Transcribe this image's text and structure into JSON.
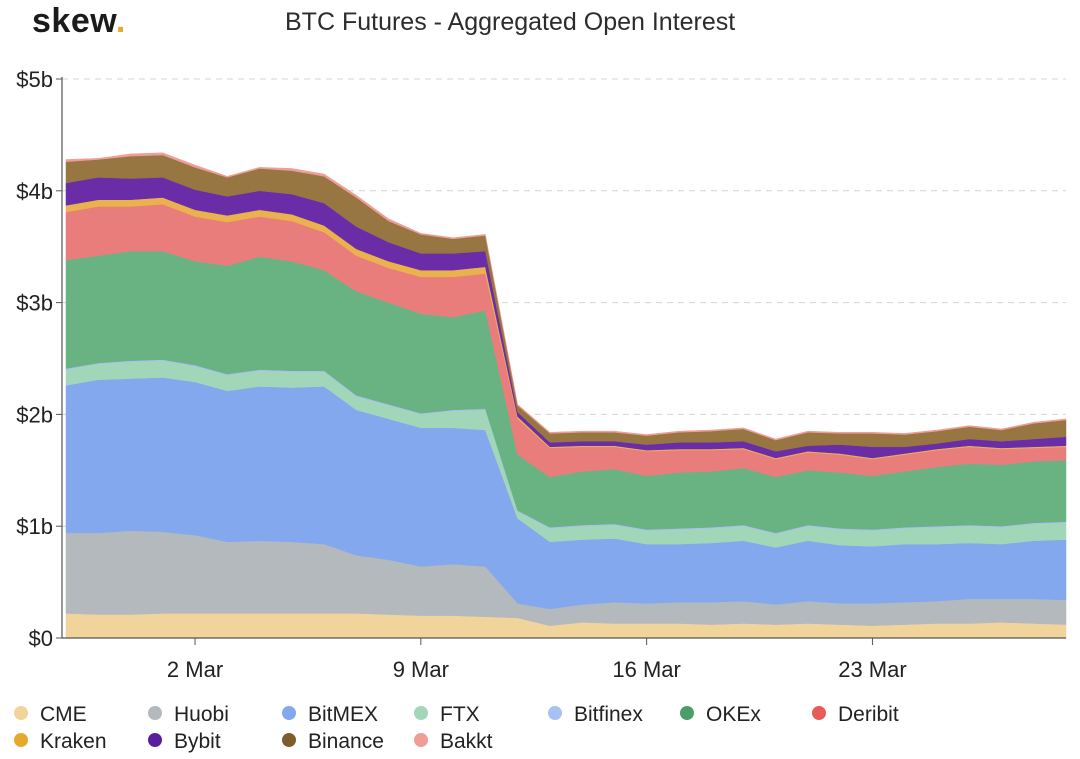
{
  "header": {
    "logo_text": "skew",
    "logo_dot": ".",
    "logo_dot_color": "#e7a92d"
  },
  "chart_data": {
    "type": "area",
    "stacked": true,
    "title": "BTC Futures - Aggregated Open Interest",
    "xlabel": "",
    "ylabel": "",
    "x_ticks": [
      "2 Mar",
      "9 Mar",
      "16 Mar",
      "23 Mar"
    ],
    "y_ticks": [
      "$0",
      "$1b",
      "$2b",
      "$3b",
      "$4b",
      "$5b"
    ],
    "ylim": [
      0,
      5
    ],
    "y_unit": "billion USD",
    "grid": "horizontal dashed",
    "legend_position": "bottom",
    "x": [
      "27 Feb",
      "28 Feb",
      "29 Feb",
      "1 Mar",
      "2 Mar",
      "3 Mar",
      "4 Mar",
      "5 Mar",
      "6 Mar",
      "7 Mar",
      "8 Mar",
      "9 Mar",
      "10 Mar",
      "11 Mar",
      "12 Mar",
      "13 Mar",
      "14 Mar",
      "15 Mar",
      "16 Mar",
      "17 Mar",
      "18 Mar",
      "19 Mar",
      "20 Mar",
      "21 Mar",
      "22 Mar",
      "23 Mar",
      "24 Mar",
      "25 Mar",
      "26 Mar",
      "27 Mar",
      "28 Mar",
      "29 Mar"
    ],
    "series": [
      {
        "name": "CME",
        "color": "#f0d49b",
        "values": [
          0.22,
          0.21,
          0.21,
          0.22,
          0.22,
          0.22,
          0.22,
          0.22,
          0.22,
          0.22,
          0.21,
          0.2,
          0.2,
          0.19,
          0.18,
          0.11,
          0.14,
          0.13,
          0.13,
          0.13,
          0.12,
          0.13,
          0.12,
          0.13,
          0.12,
          0.11,
          0.12,
          0.13,
          0.13,
          0.14,
          0.13,
          0.12
        ]
      },
      {
        "name": "Huobi",
        "color": "#b3b9bd",
        "values": [
          0.72,
          0.73,
          0.75,
          0.73,
          0.7,
          0.64,
          0.65,
          0.64,
          0.62,
          0.52,
          0.49,
          0.44,
          0.46,
          0.45,
          0.13,
          0.15,
          0.16,
          0.19,
          0.18,
          0.19,
          0.2,
          0.2,
          0.18,
          0.2,
          0.19,
          0.2,
          0.2,
          0.2,
          0.22,
          0.21,
          0.22,
          0.22
        ]
      },
      {
        "name": "BitMEX",
        "color": "#84a8ee",
        "values": [
          1.32,
          1.37,
          1.36,
          1.38,
          1.37,
          1.35,
          1.38,
          1.38,
          1.41,
          1.3,
          1.26,
          1.24,
          1.22,
          1.22,
          0.76,
          0.6,
          0.58,
          0.57,
          0.53,
          0.52,
          0.53,
          0.54,
          0.51,
          0.54,
          0.52,
          0.51,
          0.52,
          0.51,
          0.5,
          0.49,
          0.52,
          0.54
        ]
      },
      {
        "name": "FTX",
        "color": "#a2d6b9",
        "values": [
          0.14,
          0.14,
          0.15,
          0.15,
          0.14,
          0.14,
          0.14,
          0.14,
          0.13,
          0.12,
          0.12,
          0.12,
          0.15,
          0.18,
          0.06,
          0.12,
          0.12,
          0.12,
          0.12,
          0.13,
          0.13,
          0.13,
          0.12,
          0.13,
          0.14,
          0.14,
          0.14,
          0.15,
          0.15,
          0.15,
          0.15,
          0.15
        ]
      },
      {
        "name": "Bitfinex",
        "color": "#a7c2f2",
        "values": [
          0.01,
          0.01,
          0.01,
          0.01,
          0.01,
          0.01,
          0.01,
          0.01,
          0.01,
          0.01,
          0.01,
          0.01,
          0.01,
          0.01,
          0.01,
          0.01,
          0.01,
          0.01,
          0.01,
          0.01,
          0.01,
          0.01,
          0.01,
          0.01,
          0.01,
          0.01,
          0.01,
          0.01,
          0.01,
          0.01,
          0.01,
          0.01
        ]
      },
      {
        "name": "OKEx",
        "color": "#69b382",
        "values": [
          0.97,
          0.96,
          0.98,
          0.97,
          0.93,
          0.97,
          1.01,
          0.98,
          0.9,
          0.93,
          0.91,
          0.89,
          0.83,
          0.88,
          0.5,
          0.45,
          0.48,
          0.49,
          0.48,
          0.5,
          0.5,
          0.51,
          0.5,
          0.49,
          0.5,
          0.48,
          0.5,
          0.53,
          0.55,
          0.55,
          0.55,
          0.55
        ]
      },
      {
        "name": "Deribit",
        "color": "#e97d7b",
        "values": [
          0.43,
          0.44,
          0.4,
          0.42,
          0.4,
          0.39,
          0.36,
          0.36,
          0.34,
          0.32,
          0.31,
          0.33,
          0.36,
          0.33,
          0.32,
          0.26,
          0.22,
          0.2,
          0.22,
          0.2,
          0.19,
          0.17,
          0.16,
          0.16,
          0.16,
          0.15,
          0.15,
          0.15,
          0.15,
          0.14,
          0.12,
          0.12
        ]
      },
      {
        "name": "Kraken",
        "color": "#e9b24d",
        "values": [
          0.06,
          0.06,
          0.06,
          0.06,
          0.06,
          0.06,
          0.06,
          0.06,
          0.06,
          0.06,
          0.06,
          0.06,
          0.06,
          0.06,
          0.02,
          0.01,
          0.01,
          0.01,
          0.01,
          0.01,
          0.01,
          0.01,
          0.01,
          0.01,
          0.01,
          0.01,
          0.01,
          0.01,
          0.01,
          0.01,
          0.01,
          0.01
        ]
      },
      {
        "name": "Bybit",
        "color": "#6b2ca8",
        "values": [
          0.2,
          0.2,
          0.19,
          0.18,
          0.18,
          0.17,
          0.17,
          0.18,
          0.2,
          0.2,
          0.17,
          0.15,
          0.15,
          0.14,
          0.04,
          0.04,
          0.04,
          0.04,
          0.05,
          0.06,
          0.06,
          0.06,
          0.06,
          0.05,
          0.08,
          0.1,
          0.06,
          0.05,
          0.06,
          0.06,
          0.07,
          0.08
        ]
      },
      {
        "name": "Binance",
        "color": "#977642",
        "values": [
          0.19,
          0.16,
          0.2,
          0.2,
          0.2,
          0.17,
          0.2,
          0.21,
          0.24,
          0.26,
          0.19,
          0.17,
          0.13,
          0.14,
          0.06,
          0.08,
          0.08,
          0.08,
          0.08,
          0.09,
          0.1,
          0.11,
          0.1,
          0.12,
          0.1,
          0.12,
          0.11,
          0.11,
          0.11,
          0.1,
          0.14,
          0.15
        ]
      },
      {
        "name": "Bakkt",
        "color": "#f09c97",
        "values": [
          0.02,
          0.01,
          0.02,
          0.02,
          0.02,
          0.01,
          0.01,
          0.02,
          0.02,
          0.02,
          0.02,
          0.01,
          0.01,
          0.01,
          0.01,
          0.01,
          0.01,
          0.01,
          0.01,
          0.01,
          0.01,
          0.01,
          0.01,
          0.01,
          0.01,
          0.01,
          0.01,
          0.01,
          0.01,
          0.01,
          0.01,
          0.01
        ]
      }
    ]
  },
  "legend_items": [
    {
      "label": "CME",
      "color": "#f0d49b"
    },
    {
      "label": "Huobi",
      "color": "#b3b9bd"
    },
    {
      "label": "BitMEX",
      "color": "#84a8ee"
    },
    {
      "label": "FTX",
      "color": "#a2d6b9"
    },
    {
      "label": "Bitfinex",
      "color": "#a7c2f2"
    },
    {
      "label": "OKEx",
      "color": "#4c9e69"
    },
    {
      "label": "Deribit",
      "color": "#e75b58"
    },
    {
      "label": "Kraken",
      "color": "#e7a92d"
    },
    {
      "label": "Bybit",
      "color": "#5a1e9c"
    },
    {
      "label": "Binance",
      "color": "#7e5c2c"
    },
    {
      "label": "Bakkt",
      "color": "#f09c97"
    }
  ]
}
